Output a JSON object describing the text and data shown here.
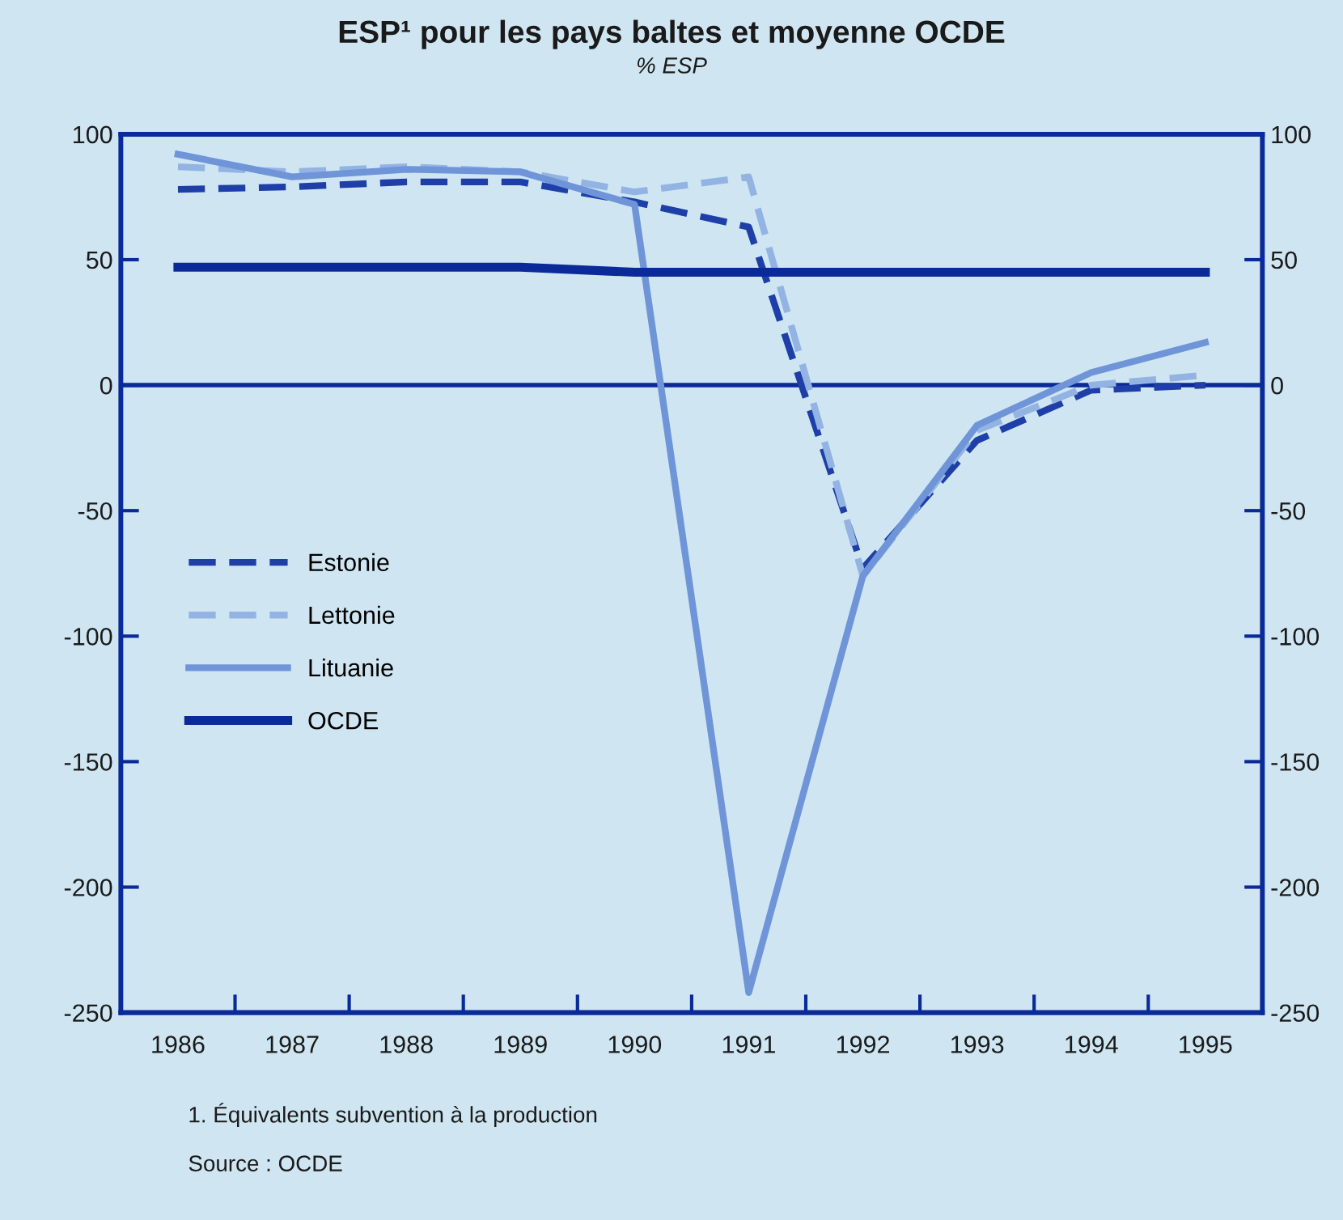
{
  "chart_data": {
    "type": "line",
    "title": "ESP¹ pour les pays baltes et moyenne OCDE",
    "subtitle": "% ESP",
    "categories": [
      "1986",
      "1987",
      "1988",
      "1989",
      "1990",
      "1991",
      "1992",
      "1993",
      "1994",
      "1995"
    ],
    "series": [
      {
        "name": "Estonie",
        "color": "#1f3fa8",
        "line_style": "dashed",
        "values": [
          78,
          79,
          81,
          81,
          73,
          63,
          -73,
          -22,
          -2,
          0
        ]
      },
      {
        "name": "Lettonie",
        "color": "#93b4e3",
        "line_style": "dashed",
        "values": [
          87,
          85,
          87,
          85,
          77,
          83,
          -76,
          -18,
          0,
          4
        ]
      },
      {
        "name": "Lituanie",
        "color": "#6f95d8",
        "line_style": "solid",
        "values": [
          92,
          83,
          86,
          85,
          72,
          -242,
          -76,
          -16,
          5,
          17
        ]
      },
      {
        "name": "OCDE",
        "color": "#0a2a9a",
        "line_style": "solid",
        "values": [
          47,
          47,
          47,
          47,
          45,
          45,
          45,
          45,
          45,
          45
        ]
      }
    ],
    "ylim": [
      -250,
      100
    ],
    "yticks": [
      -250,
      -200,
      -150,
      -100,
      -50,
      0,
      50,
      100
    ],
    "y2lim": [
      -250,
      100
    ],
    "y2ticks": [
      -250,
      -200,
      -150,
      -100,
      -50,
      0,
      50,
      100
    ],
    "ref_lines": [
      {
        "axis": "y",
        "value": 0,
        "color": "#0a2a9a"
      }
    ],
    "grid": false,
    "legend": "left",
    "marker": "none",
    "annotations": [
      "1. Équivalents subvention à la production",
      "Source : OCDE"
    ]
  }
}
